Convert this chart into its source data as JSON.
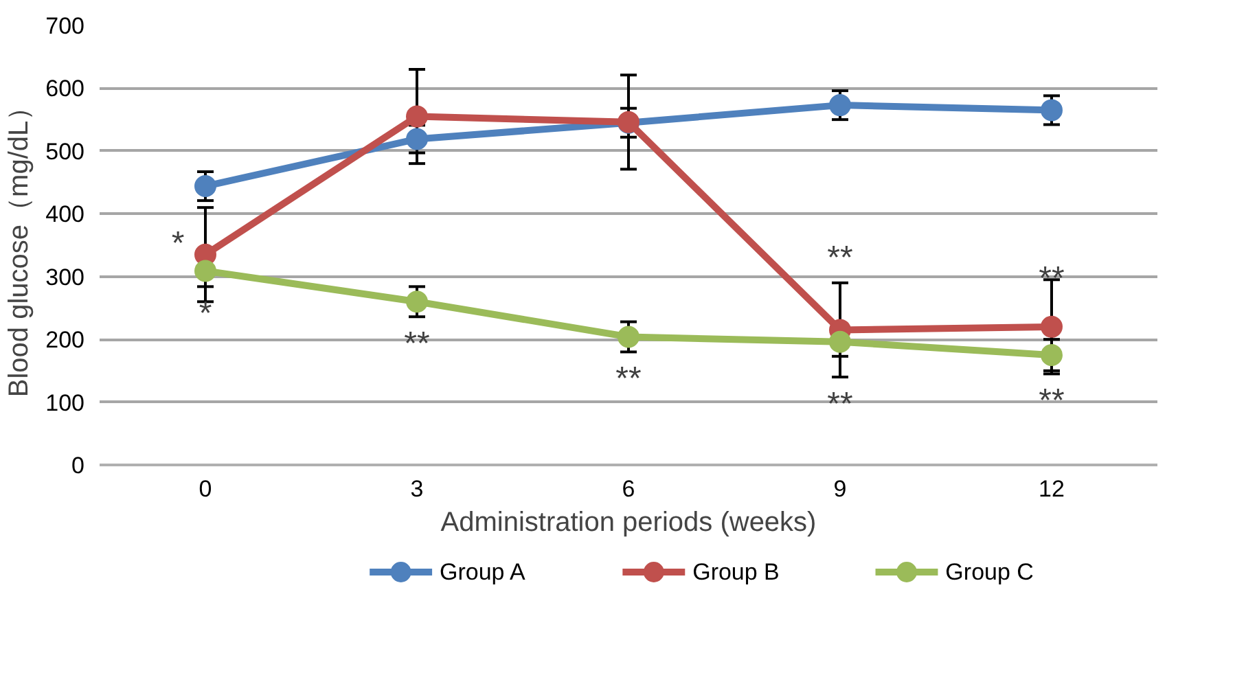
{
  "chart_data": {
    "type": "line",
    "xlabel": "Administration periods (weeks)",
    "ylabel": "Blood glucose（mg/dL）",
    "x": [
      0,
      3,
      6,
      9,
      12
    ],
    "series": [
      {
        "name": "Group A",
        "color": "#4f81bd",
        "values": [
          444,
          519,
          545,
          573,
          565
        ],
        "errors": [
          23,
          22,
          23,
          23,
          23
        ]
      },
      {
        "name": "Group B",
        "color": "#c0504d",
        "values": [
          335,
          555,
          546,
          215,
          220
        ],
        "errors": [
          75,
          75,
          75,
          75,
          75
        ]
      },
      {
        "name": "Group C",
        "color": "#9bbb59",
        "values": [
          309,
          260,
          204,
          196,
          175
        ],
        "errors": [
          25,
          24,
          24,
          23,
          25
        ]
      }
    ],
    "annotations": [
      {
        "text": "*",
        "x": 0,
        "y": 335
      },
      {
        "text": "*",
        "x": 0,
        "y": 284
      },
      {
        "text": "**",
        "x": 3,
        "y": 236
      },
      {
        "text": "**",
        "x": 6,
        "y": 180
      },
      {
        "text": "**",
        "x": 9,
        "y": 290
      },
      {
        "text": "**",
        "x": 9,
        "y": 140
      },
      {
        "text": "**",
        "x": 12,
        "y": 296
      },
      {
        "text": "**",
        "x": 12,
        "y": 145
      }
    ],
    "xlim": [
      -1.5,
      13.5
    ],
    "xticks": [
      0,
      3,
      6,
      9,
      12
    ],
    "ylim": [
      0,
      700
    ],
    "yticks": [
      0,
      100,
      200,
      300,
      400,
      500,
      600,
      700
    ],
    "grid": "y",
    "legend": "bottom",
    "marker": "circle",
    "line_style": "solid"
  }
}
